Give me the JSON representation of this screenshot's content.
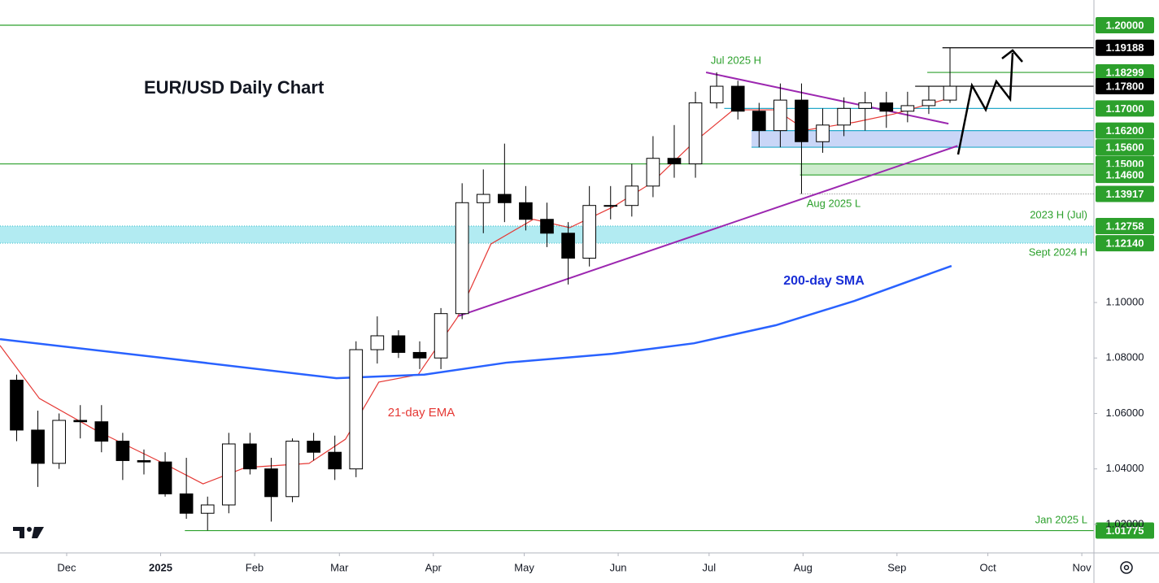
{
  "chart_data": {
    "type": "candlestick",
    "title": "EUR/USD Daily Chart",
    "xlim": [
      -22,
      339
    ],
    "ylim": [
      1.0097,
      1.2091
    ],
    "xticks": [
      {
        "value": 0,
        "label": "Dec"
      },
      {
        "value": 31,
        "label": "2025"
      },
      {
        "value": 62,
        "label": "Feb"
      },
      {
        "value": 90,
        "label": "Mar"
      },
      {
        "value": 121,
        "label": "Apr"
      },
      {
        "value": 151,
        "label": "May"
      },
      {
        "value": 182,
        "label": "Jun"
      },
      {
        "value": 212,
        "label": "Jul"
      },
      {
        "value": 243,
        "label": "Aug"
      },
      {
        "value": 274,
        "label": "Sep"
      },
      {
        "value": 304,
        "label": "Oct"
      },
      {
        "value": 335,
        "label": "Nov"
      }
    ],
    "yticks": [
      {
        "value": 1.1,
        "label": "1.10000"
      },
      {
        "value": 1.08,
        "label": "1.08000"
      },
      {
        "value": 1.06,
        "label": "1.06000"
      },
      {
        "value": 1.04,
        "label": "1.04000"
      },
      {
        "value": 1.02,
        "label": "1.02000"
      }
    ],
    "x": [
      -20,
      -13,
      -6,
      1,
      8,
      15,
      22,
      29,
      36,
      43,
      50,
      57,
      64,
      71,
      78,
      85,
      92,
      99,
      106,
      113,
      120,
      127,
      134,
      141,
      148,
      155,
      162,
      169,
      176,
      183,
      190,
      197,
      204,
      211,
      218,
      225,
      232,
      239,
      246,
      253,
      260,
      267,
      274,
      281,
      288
    ],
    "open": [
      1.072,
      1.054,
      1.042,
      1.0575,
      1.057,
      1.05,
      1.043,
      1.0425,
      1.031,
      1.024,
      1.027,
      1.049,
      1.04,
      1.03,
      1.05,
      1.046,
      1.04,
      1.083,
      1.088,
      1.082,
      1.08,
      1.096,
      1.136,
      1.139,
      1.136,
      1.13,
      1.125,
      1.116,
      1.135,
      1.135,
      1.142,
      1.152,
      1.15,
      1.172,
      1.178,
      1.169,
      1.162,
      1.173,
      1.158,
      1.164,
      1.17,
      1.172,
      1.169,
      1.171,
      1.173
    ],
    "high": [
      1.074,
      1.061,
      1.06,
      1.063,
      1.063,
      1.053,
      1.047,
      1.046,
      1.044,
      1.03,
      1.053,
      1.053,
      1.044,
      1.051,
      1.053,
      1.052,
      1.086,
      1.095,
      1.09,
      1.086,
      1.098,
      1.143,
      1.148,
      1.1573,
      1.142,
      1.136,
      1.129,
      1.142,
      1.142,
      1.15,
      1.16,
      1.164,
      1.176,
      1.183,
      1.18,
      1.172,
      1.179,
      1.179,
      1.17,
      1.174,
      1.176,
      1.176,
      1.176,
      1.178,
      1.1919
    ],
    "low": [
      1.05,
      1.0335,
      1.04,
      1.051,
      1.046,
      1.036,
      1.038,
      1.03,
      1.022,
      1.0178,
      1.024,
      1.038,
      1.021,
      1.028,
      1.043,
      1.036,
      1.037,
      1.078,
      1.08,
      1.076,
      1.076,
      1.094,
      1.125,
      1.129,
      1.126,
      1.12,
      1.1065,
      1.113,
      1.13,
      1.131,
      1.138,
      1.145,
      1.145,
      1.17,
      1.166,
      1.156,
      1.156,
      1.1392,
      1.154,
      1.16,
      1.162,
      1.163,
      1.165,
      1.168,
      1.172
    ],
    "close": [
      1.054,
      1.042,
      1.0575,
      1.057,
      1.05,
      1.043,
      1.0425,
      1.031,
      1.024,
      1.027,
      1.049,
      1.04,
      1.03,
      1.05,
      1.046,
      1.04,
      1.083,
      1.088,
      1.082,
      1.08,
      1.096,
      1.136,
      1.139,
      1.136,
      1.13,
      1.125,
      1.116,
      1.135,
      1.135,
      1.142,
      1.152,
      1.15,
      1.172,
      1.178,
      1.169,
      1.162,
      1.173,
      1.158,
      1.164,
      1.17,
      1.172,
      1.169,
      1.171,
      1.173,
      1.178
    ],
    "series": [
      {
        "name": "21-day EMA",
        "color": "#e53935",
        "x": [
          -22,
          -9,
          10,
          32,
          45,
          59,
          80,
          92,
          103,
          116,
          129,
          140,
          154,
          166,
          180,
          193,
          207,
          220,
          234,
          244,
          260,
          273,
          292
        ],
        "values": [
          1.0845,
          1.0654,
          1.0537,
          1.042,
          1.0346,
          1.0405,
          1.042,
          1.0507,
          1.0713,
          1.074,
          1.0947,
          1.1211,
          1.13,
          1.127,
          1.1343,
          1.1431,
          1.1578,
          1.1695,
          1.1695,
          1.1622,
          1.165,
          1.168,
          1.1739
        ]
      },
      {
        "name": "200-day SMA",
        "color": "#2962ff",
        "x": [
          -22,
          32,
          89,
          118,
          145,
          180,
          207,
          234,
          260,
          292
        ],
        "values": [
          1.0868,
          1.08,
          1.0727,
          1.074,
          1.0783,
          1.0815,
          1.0853,
          1.0918,
          1.1006,
          1.1132
        ]
      }
    ],
    "trendlines": [
      {
        "color": "#9c27b0",
        "x": [
          211,
          291
        ],
        "values": [
          1.183,
          1.1645
        ]
      },
      {
        "color": "#9c27b0",
        "x": [
          129,
          294
        ],
        "values": [
          1.095,
          1.1565
        ]
      }
    ],
    "zones": [
      {
        "from": -22,
        "low": 1.1214,
        "high": 1.12758,
        "color": "#b2ebf2"
      },
      {
        "from": 226,
        "low": 1.156,
        "high": 1.162,
        "color": "#c9d6f7"
      },
      {
        "from": 242,
        "low": 1.146,
        "high": 1.15,
        "color": "#cdeccd"
      }
    ],
    "levels": [
      {
        "value": 1.2,
        "label": "1.20000",
        "color": "#2ca02c",
        "line": "#2ca02c",
        "from": -22
      },
      {
        "value": 1.19188,
        "label": "1.19188",
        "color": "#000000",
        "line": "#000000",
        "from": 289
      },
      {
        "value": 1.18299,
        "label": "1.18299",
        "color": "#2ca02c",
        "line": "#2ca02c",
        "from": 284
      },
      {
        "value": 1.178,
        "label": "1.17800",
        "color": "#000000",
        "line": "#000000",
        "from": 280
      },
      {
        "value": 1.17,
        "label": "1.17000",
        "color": "#2ca02c",
        "line": "#26a9c9",
        "from": 217
      },
      {
        "value": 1.162,
        "label": "1.16200",
        "color": "#2ca02c",
        "line": "#26a9c9",
        "from": 226
      },
      {
        "value": 1.156,
        "label": "1.15600",
        "color": "#2ca02c",
        "line": "#26a9c9",
        "from": 226
      },
      {
        "value": 1.15,
        "label": "1.15000",
        "color": "#2ca02c",
        "line": "#2ca02c",
        "from": -22
      },
      {
        "value": 1.146,
        "label": "1.14600",
        "color": "#2ca02c",
        "line": "#2ca02c",
        "from": 242
      },
      {
        "value": 1.13917,
        "label": "1.13917",
        "color": "#2ca02c",
        "line": "#888888",
        "from": 242,
        "style": "dotted"
      },
      {
        "value": 1.12758,
        "label": "1.12758",
        "color": "#2ca02c",
        "line": "#4fc3cf",
        "from": -22,
        "style": "dotted"
      },
      {
        "value": 1.1214,
        "label": "1.12140",
        "color": "#2ca02c",
        "line": "#4fc3cf",
        "from": -22,
        "style": "dotted"
      },
      {
        "value": 1.01775,
        "label": "1.01775",
        "color": "#2ca02c",
        "line": "#2ca02c",
        "from": 39
      }
    ],
    "annotations": [
      "Jul 2025 H",
      "Aug 2025 L",
      "2023 H (Jul)",
      "Sept 2024 H",
      "Jan 2025 L",
      "21-day EMA",
      "200-day SMA"
    ]
  }
}
